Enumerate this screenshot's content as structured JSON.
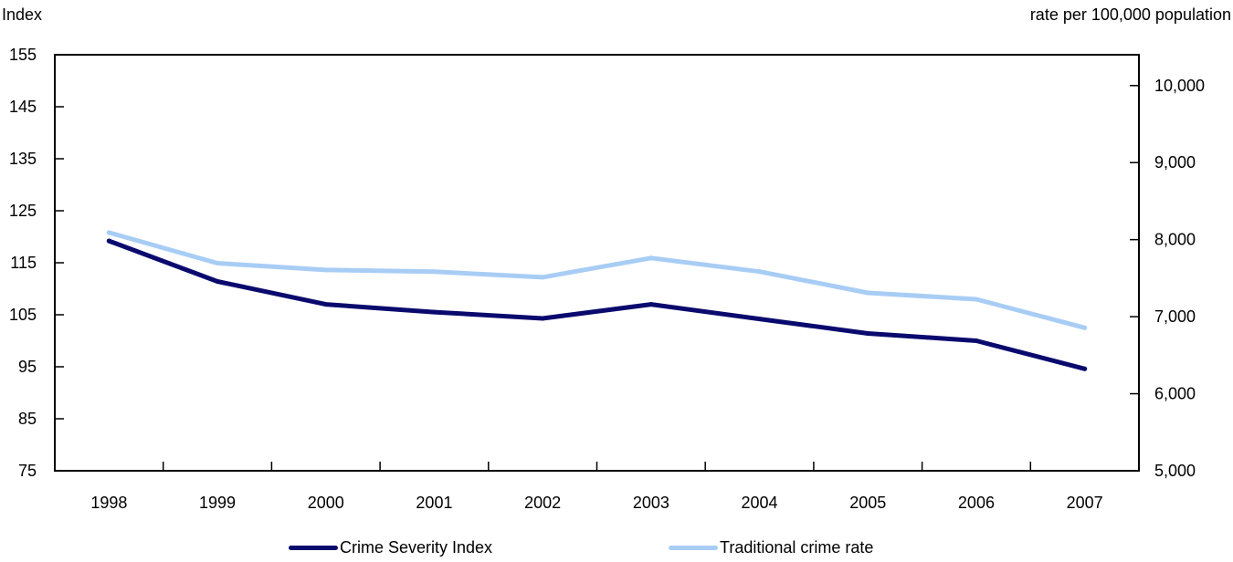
{
  "chart_data": {
    "type": "line",
    "left_axis_label": "Index",
    "right_axis_label": "rate per 100,000 population",
    "categories": [
      "1998",
      "1999",
      "2000",
      "2001",
      "2002",
      "2003",
      "2004",
      "2005",
      "2006",
      "2007"
    ],
    "y_left_ticks": [
      "155",
      "145",
      "135",
      "125",
      "115",
      "105",
      "95",
      "85",
      "75"
    ],
    "y_right_ticks": [
      "10,000",
      "9,000",
      "8,000",
      "7,000",
      "6,000",
      "5,000"
    ],
    "y_left_range": [
      75,
      155
    ],
    "y_right_range": [
      5000,
      10000
    ],
    "y_right_top": 10400,
    "grid": false,
    "legend_position": "bottom",
    "series": [
      {
        "name": "Crime Severity Index",
        "axis": "left",
        "color": "#0a0a6e",
        "values": [
          119.2,
          111.4,
          107.0,
          105.5,
          104.3,
          107.0,
          104.2,
          101.4,
          100.0,
          94.6
        ]
      },
      {
        "name": "Traditional crime rate",
        "axis": "right",
        "color": "#a8cdf5",
        "values": [
          8092,
          7694,
          7606,
          7584,
          7512,
          7762,
          7585,
          7309,
          7226,
          6856
        ]
      }
    ]
  }
}
